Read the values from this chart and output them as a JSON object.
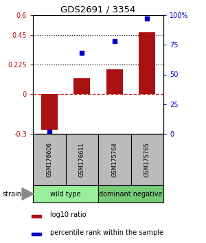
{
  "title": "GDS2691 / 3354",
  "samples": [
    "GSM176606",
    "GSM176611",
    "GSM175764",
    "GSM175765"
  ],
  "log10_ratio": [
    -0.27,
    0.12,
    0.19,
    0.47
  ],
  "percentile_rank": [
    2,
    68,
    78,
    97
  ],
  "bar_color": "#aa1111",
  "dot_color": "#0000cc",
  "ylim_left": [
    -0.3,
    0.6
  ],
  "ylim_right": [
    0,
    100
  ],
  "yticks_left": [
    -0.3,
    0,
    0.225,
    0.45,
    0.6
  ],
  "ytick_labels_left": [
    "-0.3",
    "0",
    "0.225",
    "0.45",
    "0.6"
  ],
  "yticks_right": [
    0,
    25,
    50,
    75,
    100
  ],
  "ytick_labels_right": [
    "0",
    "25",
    "50",
    "75",
    "100%"
  ],
  "hlines": [
    0.225,
    0.45
  ],
  "zero_line": 0,
  "groups": [
    {
      "label": "wild type",
      "color": "#99ee99",
      "span": [
        0,
        2
      ]
    },
    {
      "label": "dominant negative",
      "color": "#77cc77",
      "span": [
        2,
        4
      ]
    }
  ],
  "strain_label": "strain",
  "legend_bar_label": "log10 ratio",
  "legend_dot_label": "percentile rank within the sample",
  "box_color": "#bbbbbb",
  "bar_width": 0.5
}
